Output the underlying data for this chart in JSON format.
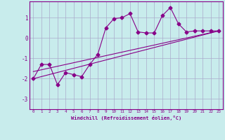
{
  "background_color": "#c8ecec",
  "grid_color": "#aaaacc",
  "line_color": "#880088",
  "xlabel": "Windchill (Refroidissement éolien,°C)",
  "xlim": [
    -0.5,
    23.5
  ],
  "ylim": [
    -3.5,
    1.8
  ],
  "yticks": [
    -3,
    -2,
    -1,
    0,
    1
  ],
  "xticks": [
    0,
    1,
    2,
    3,
    4,
    5,
    6,
    7,
    8,
    9,
    10,
    11,
    12,
    13,
    14,
    15,
    16,
    17,
    18,
    19,
    20,
    21,
    22,
    23
  ],
  "curve1_x": [
    0,
    1,
    2,
    3,
    4,
    5,
    6,
    7,
    8,
    9,
    10,
    11,
    12,
    13,
    14,
    15,
    16,
    17,
    18,
    19,
    20,
    21,
    22,
    23
  ],
  "curve1_y": [
    -2.0,
    -1.3,
    -1.3,
    -2.3,
    -1.7,
    -1.8,
    -1.9,
    -1.3,
    -0.8,
    0.5,
    0.95,
    1.0,
    1.2,
    0.3,
    0.25,
    0.25,
    1.1,
    1.5,
    0.7,
    0.3,
    0.35,
    0.35,
    0.35,
    0.35
  ],
  "line2_x": [
    0,
    23
  ],
  "line2_y": [
    -2.0,
    0.35
  ],
  "line3_x": [
    0,
    23
  ],
  "line3_y": [
    -1.65,
    0.35
  ]
}
